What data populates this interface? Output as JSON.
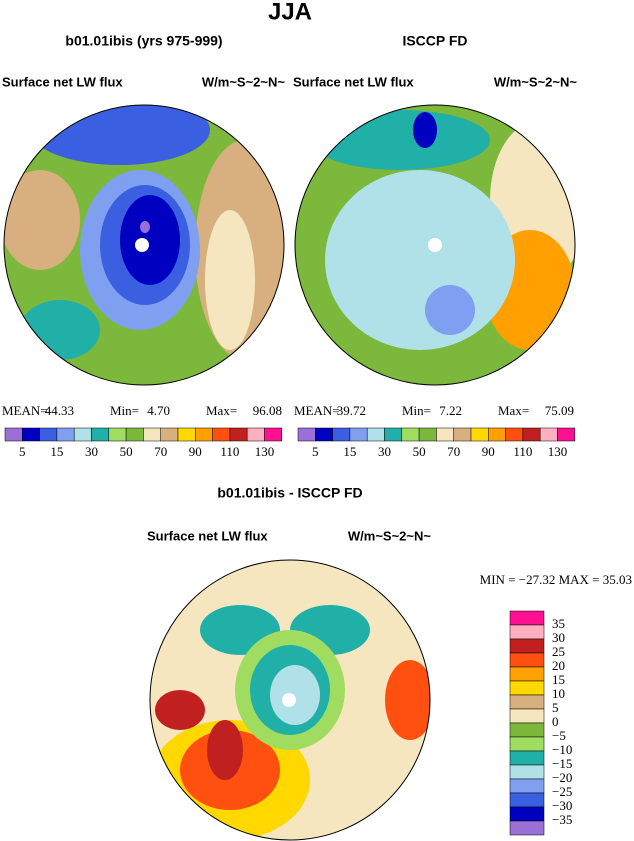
{
  "title": "JJA",
  "panels": [
    {
      "case": "b01.01ibis (yrs 975-999)",
      "variable": "Surface net LW flux",
      "units": "W/m~S~2~N~",
      "stats": [
        "MEAN=",
        "44.33",
        "Min=",
        "4.70",
        "Max=",
        "96.08"
      ]
    },
    {
      "case": "ISCCP FD",
      "variable": "Surface net LW flux",
      "units": "W/m~S~2~N~",
      "stats": [
        "MEAN=",
        "39.72",
        "Min=",
        "7.22",
        "Max=",
        "75.09"
      ]
    }
  ],
  "colorbar_labels": [
    "5",
    "15",
    "30",
    "50",
    "70",
    "90",
    "110",
    "130"
  ],
  "difference": {
    "case": "b01.01ibis - ISCCP FD",
    "variable": "Surface net LW flux",
    "units": "W/m~S~2~N~",
    "stats": "MIN = −27.32 MAX =  35.03",
    "colorbar_labels": [
      "35",
      "30",
      "25",
      "20",
      "15",
      "10",
      "5",
      "0",
      "−5",
      "−10",
      "−15",
      "−20",
      "−25",
      "−30",
      "−35"
    ]
  }
}
